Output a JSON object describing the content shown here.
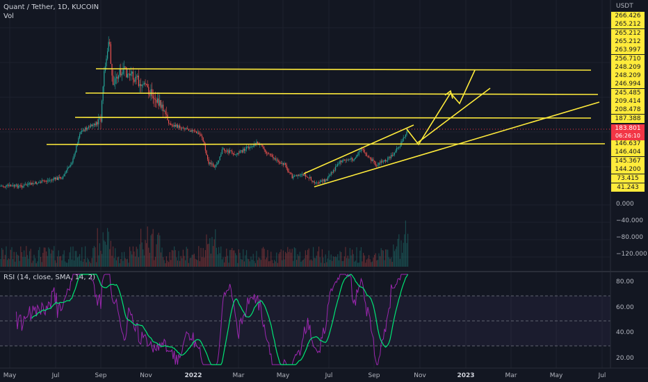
{
  "header": {
    "symbol_line": "Quant / Tether, 1D, KUCOIN",
    "vol_label": "Vol",
    "rsi_label": "RSI (14, close, SMA, 14, 2)",
    "currency": "USDT"
  },
  "price_tags": [
    "266.426",
    "265.212",
    "265.212",
    "265.212",
    "263.997",
    "256.710",
    "248.209",
    "248.209",
    "246.994",
    "245.485",
    "209.414",
    "208.478",
    "187.388",
    "146.637",
    "146.404",
    "145.367",
    "144.200",
    "73.415",
    "41.243"
  ],
  "current_price": {
    "value": "183.801",
    "countdown": "06:26:10"
  },
  "volume_axis": [
    "0.000",
    "−40.000",
    "−80.000",
    "−120.000"
  ],
  "rsi_axis": [
    "80.00",
    "60.00",
    "40.00",
    "20.00"
  ],
  "x_axis": [
    "May",
    "Jul",
    "Sep",
    "Nov",
    "2022",
    "Mar",
    "May",
    "Jul",
    "Sep",
    "Nov",
    "2023",
    "Mar",
    "May",
    "Jul"
  ],
  "colors": {
    "up": "#26a69a",
    "down": "#ef5350",
    "rsi": "#9c27b0",
    "rsi_ma": "#00e676",
    "drawing": "#ffeb3b",
    "background": "#131722"
  },
  "chart_data": {
    "type": "candlestick",
    "symbol": "Quant / Tether",
    "interval": "1D",
    "exchange": "KUCOIN",
    "series": [
      {
        "name": "Quant / Tether",
        "x": [
          "2021-05",
          "2021-07",
          "2021-09",
          "2021-11",
          "2022-01",
          "2022-03",
          "2022-05",
          "2022-06",
          "2022-07",
          "2022-08",
          "2022-09",
          "2022-10"
        ],
        "close": [
          70,
          75,
          250,
          200,
          115,
          150,
          100,
          70,
          110,
          115,
          135,
          183.8
        ]
      }
    ],
    "horizontal_levels": [
      248.209,
      245.485,
      187.388,
      146.637
    ],
    "rsi": {
      "period": 14,
      "source": "close",
      "ma": "SMA",
      "ma_length": 14,
      "levels": [
        70,
        50,
        30
      ],
      "last": 80
    },
    "ylim": [
      20,
      280
    ]
  }
}
